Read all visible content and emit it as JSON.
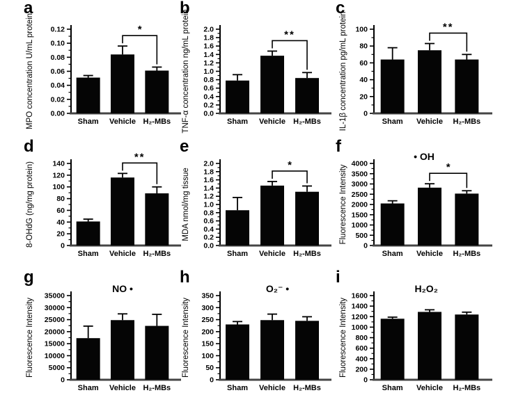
{
  "figure": {
    "background": "#ffffff",
    "bar_color": "#050505",
    "axis_color": "#000000",
    "baseline_color": "#454545",
    "categories": [
      "Sham",
      "Vehicle",
      "H₂-MBs"
    ]
  },
  "chart_data": [
    {
      "type": "bar",
      "panel_label": "a",
      "title": "",
      "ylabel": "MPO concentration U/mL protein",
      "categories": [
        "Sham",
        "Vehicle",
        "H₂-MBs"
      ],
      "values": [
        0.051,
        0.084,
        0.061
      ],
      "errors": [
        0.003,
        0.012,
        0.005
      ],
      "ylim": [
        0,
        0.12
      ],
      "yticks": [
        "0.00",
        "0.02",
        "0.04",
        "0.06",
        "0.08",
        "0.10",
        "0.12"
      ],
      "significance": {
        "from": 1,
        "to": 2,
        "label": "*"
      }
    },
    {
      "type": "bar",
      "panel_label": "b",
      "title": "",
      "ylabel": "TNF-α concentration ng/mL protein",
      "categories": [
        "Sham",
        "Vehicle",
        "H₂-MBs"
      ],
      "values": [
        0.78,
        1.37,
        0.84
      ],
      "errors": [
        0.14,
        0.11,
        0.13
      ],
      "ylim": [
        0,
        2.0
      ],
      "yticks": [
        "0.0",
        "0.2",
        "0.4",
        "0.6",
        "0.8",
        "1.0",
        "1.2",
        "1.4",
        "1.6",
        "1.8",
        "2.0"
      ],
      "significance": {
        "from": 1,
        "to": 2,
        "label": "**"
      }
    },
    {
      "type": "bar",
      "panel_label": "c",
      "title": "",
      "ylabel": "IL-1β concentration pg/mL protein",
      "categories": [
        "Sham",
        "Vehicle",
        "H₂-MBs"
      ],
      "values": [
        64,
        75,
        64
      ],
      "errors": [
        14,
        8,
        6
      ],
      "ylim": [
        0,
        100
      ],
      "yticks": [
        "0",
        "20",
        "40",
        "60",
        "80",
        "100"
      ],
      "significance": {
        "from": 1,
        "to": 2,
        "label": "**"
      }
    },
    {
      "type": "bar",
      "panel_label": "d",
      "title": "",
      "ylabel": "8-OHdG (ng/mg protein)",
      "categories": [
        "Sham",
        "Vehicle",
        "H₂-MBs"
      ],
      "values": [
        41,
        116,
        89
      ],
      "errors": [
        4,
        7,
        11
      ],
      "ylim": [
        0,
        140
      ],
      "yticks": [
        "0",
        "20",
        "40",
        "60",
        "80",
        "100",
        "120",
        "140"
      ],
      "significance": {
        "from": 1,
        "to": 2,
        "label": "**"
      }
    },
    {
      "type": "bar",
      "panel_label": "e",
      "title": "",
      "ylabel": "MDA nmol/mg tissue",
      "categories": [
        "Sham",
        "Vehicle",
        "H₂-MBs"
      ],
      "values": [
        0.86,
        1.46,
        1.31
      ],
      "errors": [
        0.31,
        0.1,
        0.14
      ],
      "ylim": [
        0,
        2.0
      ],
      "yticks": [
        "0.0",
        "0.2",
        "0.4",
        "0.6",
        "0.8",
        "1.0",
        "1.2",
        "1.4",
        "1.6",
        "1.8",
        "2.0"
      ],
      "significance": {
        "from": 1,
        "to": 2,
        "label": "*"
      }
    },
    {
      "type": "bar",
      "panel_label": "f",
      "title": "• OH",
      "ylabel": "Fluorescence Intensity",
      "categories": [
        "Sham",
        "Vehicle",
        "H₂-MBs"
      ],
      "values": [
        2050,
        2820,
        2530
      ],
      "errors": [
        130,
        190,
        140
      ],
      "ylim": [
        0,
        4000
      ],
      "yticks": [
        "0",
        "500",
        "1000",
        "1500",
        "2000",
        "2500",
        "3000",
        "3500",
        "4000"
      ],
      "significance": {
        "from": 1,
        "to": 2,
        "label": "*"
      }
    },
    {
      "type": "bar",
      "panel_label": "g",
      "title": "NO •",
      "ylabel": "Fluorescence Intensity",
      "categories": [
        "Sham",
        "Vehicle",
        "H₂-MBs"
      ],
      "values": [
        17300,
        24800,
        22400
      ],
      "errors": [
        5000,
        2600,
        4800
      ],
      "ylim": [
        0,
        35000
      ],
      "yticks": [
        "0",
        "5000",
        "10000",
        "15000",
        "20000",
        "25000",
        "30000",
        "35000"
      ],
      "significance": null
    },
    {
      "type": "bar",
      "panel_label": "h",
      "title": "O₂⁻ •",
      "ylabel": "Fluorescence Intensity",
      "categories": [
        "Sham",
        "Vehicle",
        "H₂-MBs"
      ],
      "values": [
        230,
        248,
        245
      ],
      "errors": [
        12,
        25,
        17
      ],
      "ylim": [
        0,
        350
      ],
      "yticks": [
        "0",
        "50",
        "100",
        "150",
        "200",
        "250",
        "300",
        "350"
      ],
      "significance": null
    },
    {
      "type": "bar",
      "panel_label": "i",
      "title": "H₂O₂",
      "ylabel": "Fluorescence Intensity",
      "categories": [
        "Sham",
        "Vehicle",
        "H₂-MBs"
      ],
      "values": [
        1160,
        1290,
        1240
      ],
      "errors": [
        30,
        40,
        45
      ],
      "ylim": [
        0,
        1600
      ],
      "yticks": [
        "0",
        "200",
        "400",
        "600",
        "800",
        "1000",
        "1200",
        "1400",
        "1600"
      ],
      "significance": null
    }
  ]
}
